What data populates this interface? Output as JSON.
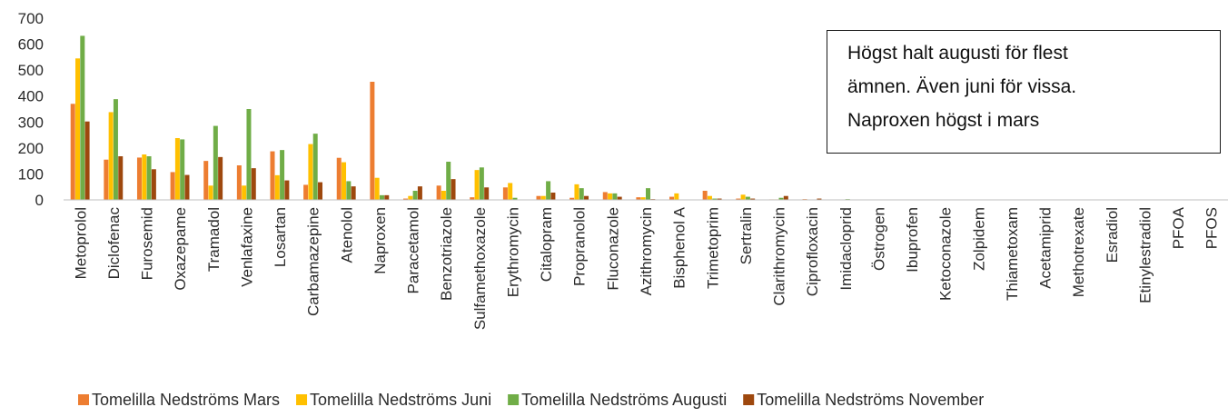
{
  "chart_data": {
    "type": "bar",
    "categories": [
      "Metoprolol",
      "Diclofenac",
      "Furosemid",
      "Oxazepame",
      "Tramadol",
      "Venlafaxine",
      "Losartan",
      "Carbamazepine",
      "Atenolol",
      "Naproxen",
      "Paracetamol",
      "Benzotriazole",
      "Sulfamethoxazole",
      "Erythromycin",
      "Citalopram",
      "Propranolol",
      "Fluconazole",
      "Azithromycin",
      "Bisphenol A",
      "Trimetoprim",
      "Sertralin",
      "Clarithromycin",
      "Ciprofloxacin",
      "Imidacloprid",
      "Östrogen",
      "Ibuprofen",
      "Ketoconazole",
      "Zolpidem",
      "Thiametoxam",
      "Acetamiprid",
      "Methotrexate",
      "Esradiol",
      "Etinylestradiol",
      "PFOA",
      "PFOS"
    ],
    "series": [
      {
        "name": "Tomelilla Nedströms Mars",
        "color": "#ED7D31",
        "values": [
          370,
          155,
          163,
          107,
          150,
          133,
          187,
          58,
          162,
          455,
          5,
          55,
          10,
          48,
          15,
          8,
          30,
          10,
          12,
          35,
          5,
          2,
          3,
          0,
          0,
          0,
          0,
          0,
          0,
          0,
          0,
          0,
          0,
          0,
          0
        ]
      },
      {
        "name": "Tomelilla Nedströms Juni",
        "color": "#FFC000",
        "values": [
          545,
          338,
          175,
          238,
          55,
          55,
          95,
          215,
          145,
          85,
          15,
          35,
          115,
          65,
          15,
          60,
          25,
          10,
          25,
          15,
          20,
          2,
          0,
          0,
          0,
          0,
          0,
          0,
          0,
          0,
          0,
          0,
          0,
          0,
          0
        ]
      },
      {
        "name": "Tomelilla Nedströms Augusti",
        "color": "#70AD47",
        "values": [
          632,
          388,
          168,
          233,
          285,
          350,
          192,
          255,
          72,
          18,
          35,
          147,
          125,
          8,
          72,
          45,
          25,
          45,
          0,
          5,
          12,
          8,
          0,
          3,
          0,
          0,
          0,
          0,
          0,
          0,
          0,
          0,
          0,
          0,
          0
        ]
      },
      {
        "name": "Tomelilla Nedströms November",
        "color": "#9E480E",
        "values": [
          302,
          168,
          118,
          96,
          165,
          122,
          75,
          68,
          52,
          18,
          52,
          80,
          48,
          0,
          28,
          15,
          12,
          3,
          0,
          5,
          5,
          15,
          5,
          0,
          0,
          0,
          0,
          0,
          0,
          0,
          0,
          0,
          0,
          0,
          0
        ]
      }
    ],
    "yticks": [
      "0",
      "100",
      "200",
      "300",
      "400",
      "500",
      "600",
      "700"
    ],
    "ylim": [
      0,
      700
    ],
    "legend_position": "bottom",
    "grid": false
  },
  "annotation": {
    "lines": [
      "Högst halt augusti för flest",
      "ämnen. Även juni för vissa.",
      "Naproxen högst i mars"
    ]
  }
}
